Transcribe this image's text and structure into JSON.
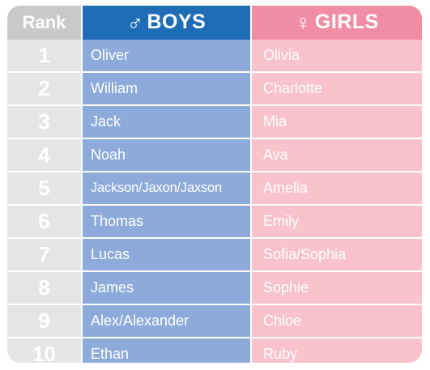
{
  "header": {
    "rank_label": "Rank",
    "boys_symbol": "♂",
    "boys_label": "BOYS",
    "girls_symbol": "♀",
    "girls_label": "GIRLS"
  },
  "colors": {
    "boys_header": "#1f6db6",
    "boys_cells": "#8eaadb",
    "girls_header": "#f08da2",
    "girls_cells": "#f9c2cc",
    "rank_header": "#c7c9cb",
    "rank_cells": "#e4e5e7"
  },
  "rows": [
    {
      "rank": "1",
      "boy": "Oliver",
      "girl": "Olivia"
    },
    {
      "rank": "2",
      "boy": "William",
      "girl": "Charlotte"
    },
    {
      "rank": "3",
      "boy": "Jack",
      "girl": "Mia"
    },
    {
      "rank": "4",
      "boy": "Noah",
      "girl": "Ava"
    },
    {
      "rank": "5",
      "boy": "Jackson/Jaxon/Jaxson",
      "girl": "Amelia"
    },
    {
      "rank": "6",
      "boy": "Thomas",
      "girl": "Emily"
    },
    {
      "rank": "7",
      "boy": "Lucas",
      "girl": "Sofia/Sophia"
    },
    {
      "rank": "8",
      "boy": "James",
      "girl": "Sophie"
    },
    {
      "rank": "9",
      "boy": "Alex/Alexander",
      "girl": "Chloe"
    },
    {
      "rank": "10",
      "boy": "Ethan",
      "girl": "Ruby"
    }
  ]
}
